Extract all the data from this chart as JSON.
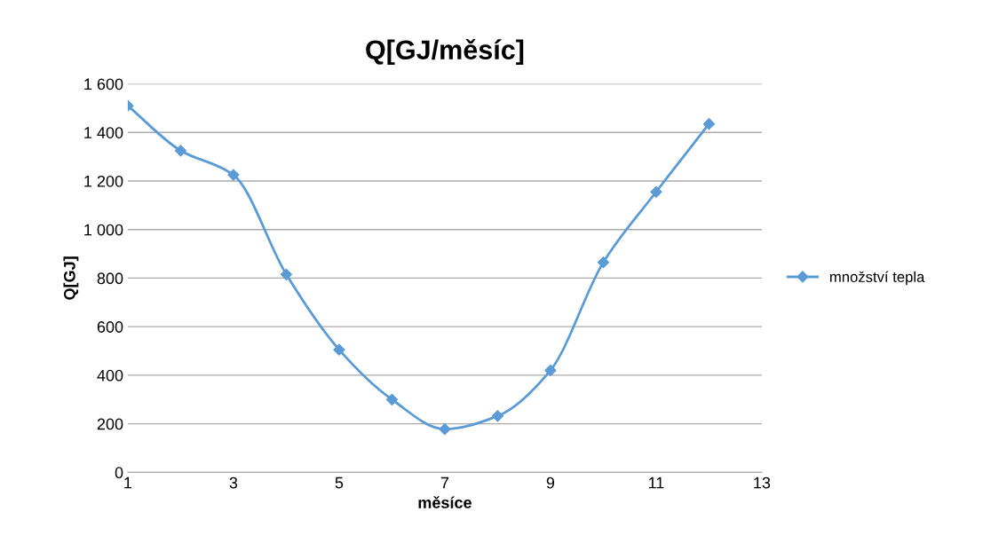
{
  "chart_data": {
    "type": "line",
    "title": "Q[GJ/měsíc]",
    "xlabel": "měsíce",
    "ylabel": "Q[GJ]",
    "x": [
      1,
      2,
      3,
      4,
      5,
      6,
      7,
      8,
      9,
      10,
      11,
      12
    ],
    "series": [
      {
        "name": "množství tepla",
        "color": "#5b9bd5",
        "values": [
          1510,
          1325,
          1225,
          815,
          505,
          300,
          178,
          232,
          420,
          865,
          1155,
          1435
        ]
      }
    ],
    "xlim": [
      1,
      13
    ],
    "xticks": [
      1,
      3,
      5,
      7,
      9,
      11,
      13
    ],
    "ylim": [
      0,
      1600
    ],
    "yticks": [
      0,
      200,
      400,
      600,
      800,
      {
        "value": 1000,
        "label": "1 000"
      },
      {
        "value": 1200,
        "label": "1 200"
      },
      {
        "value": 1400,
        "label": "1 400"
      },
      {
        "value": 1600,
        "label": "1 600"
      }
    ],
    "grid": "y",
    "legend": "right",
    "marker": "diamond",
    "line_style": "solid"
  }
}
